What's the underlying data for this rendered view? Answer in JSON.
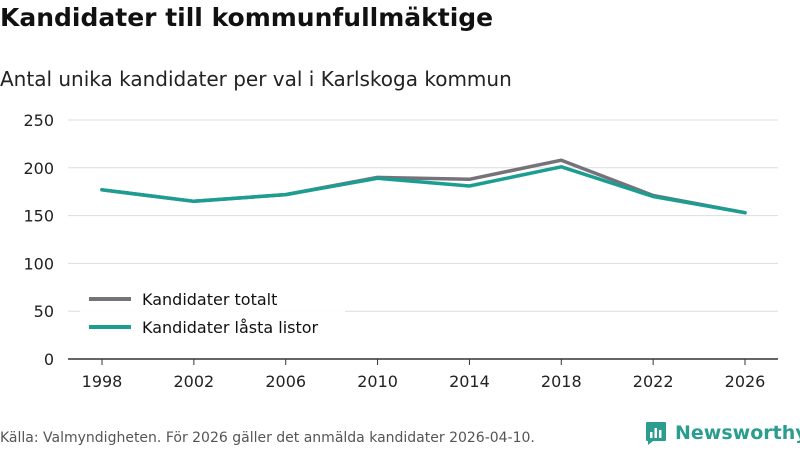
{
  "title": "Kandidater till kommunfullmäktige",
  "subtitle": "Antal unika kandidater per val i Karlskoga kommun",
  "footer": "Källa: Valmyndigheten. För 2026 gäller det anmälda kandidater 2026-04-10.",
  "brand": {
    "name": "Newsworthy",
    "icon": "newsworthy-logo-icon"
  },
  "colors": {
    "total": "#75727a",
    "locked": "#1b9e91",
    "grid": "#dddddd",
    "axis": "#333333",
    "brand": "#2a9d8f"
  },
  "chart_data": {
    "type": "line",
    "title": "Kandidater till kommunfullmäktige",
    "subtitle": "Antal unika kandidater per val i Karlskoga kommun",
    "xlabel": "",
    "ylabel": "",
    "x": [
      "1998",
      "2002",
      "2006",
      "2010",
      "2014",
      "2018",
      "2022",
      "2026"
    ],
    "ylim": [
      0,
      250
    ],
    "yticks": [
      0,
      50,
      100,
      150,
      200,
      250
    ],
    "grid": true,
    "legend_position": "bottom-left",
    "series": [
      {
        "name": "Kandidater totalt",
        "color": "#75727a",
        "values": [
          177,
          165,
          172,
          190,
          188,
          208,
          171,
          153
        ]
      },
      {
        "name": "Kandidater låsta listor",
        "color": "#1b9e91",
        "values": [
          177,
          165,
          172,
          189,
          181,
          201,
          170,
          153
        ]
      }
    ]
  }
}
